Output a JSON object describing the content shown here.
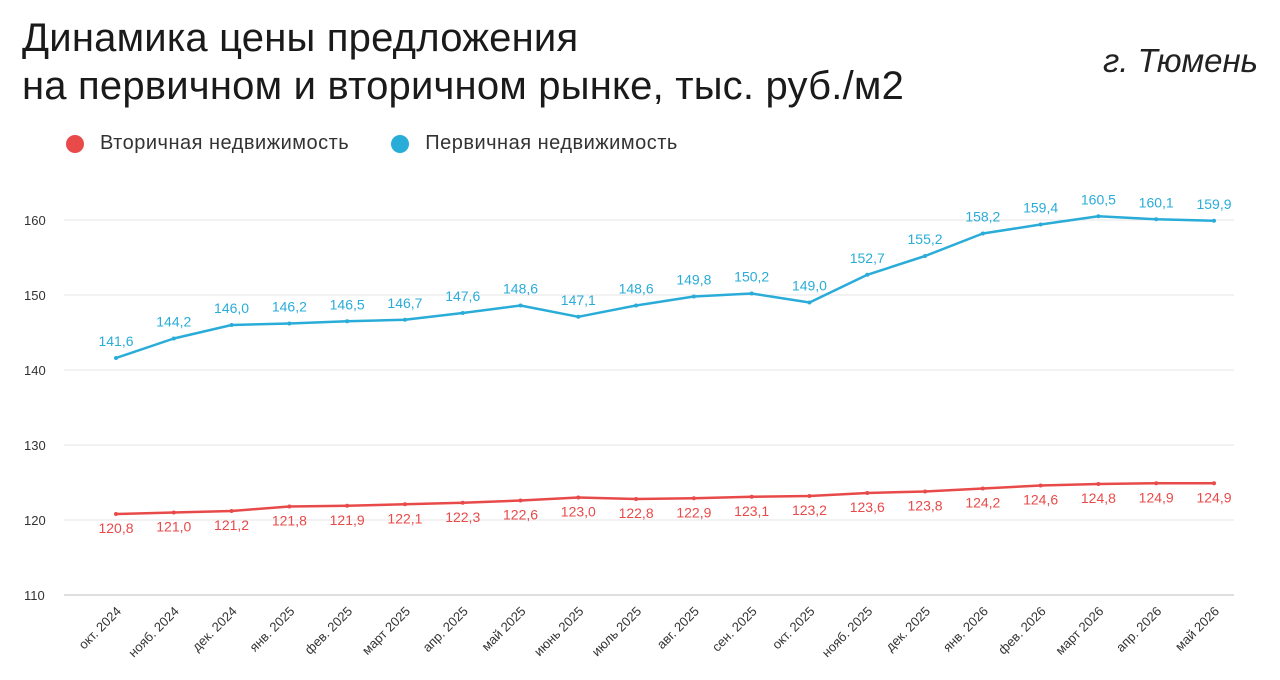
{
  "header": {
    "title_line1": "Динамика цены предложения",
    "title_line2": "на первичном и вторичном рынке, тыс. руб./м2",
    "city": "г. Тюмень"
  },
  "legend": [
    {
      "label": "Вторичная недвижимость",
      "color": "#e84a4a"
    },
    {
      "label": "Первичная недвижимость",
      "color": "#2aacd8"
    }
  ],
  "chart_data": {
    "type": "line",
    "title": "Динамика цены предложения на первичном и вторичном рынке, тыс. руб./м2",
    "categories": [
      "окт. 2024",
      "нояб. 2024",
      "дек. 2024",
      "янв. 2025",
      "фев. 2025",
      "март 2025",
      "апр. 2025",
      "май 2025",
      "июнь 2025",
      "июль 2025",
      "авг. 2025",
      "сен. 2025",
      "окт. 2025",
      "нояб. 2025",
      "дек. 2025",
      "янв. 2026",
      "фев. 2026",
      "март 2026",
      "апр. 2026",
      "май 2026"
    ],
    "series": [
      {
        "name": "Вторичная недвижимость",
        "color": "#e84a4a",
        "values": [
          120.8,
          121.0,
          121.2,
          121.8,
          121.9,
          122.1,
          122.3,
          122.6,
          123.0,
          122.8,
          122.9,
          123.1,
          123.2,
          123.6,
          123.8,
          124.2,
          124.6,
          124.8,
          124.9,
          124.9
        ],
        "labels": [
          "120,8",
          "121,0",
          "121,2",
          "121,8",
          "121,9",
          "122,1",
          "122,3",
          "122,6",
          "123,0",
          "122,8",
          "122,9",
          "123,1",
          "123,2",
          "123,6",
          "123,8",
          "124,2",
          "124,6",
          "124,8",
          "124,9",
          "124,9"
        ]
      },
      {
        "name": "Первичная недвижимость",
        "color": "#2aacd8",
        "values": [
          141.6,
          144.2,
          146.0,
          146.2,
          146.5,
          146.7,
          147.6,
          148.6,
          147.1,
          148.6,
          149.8,
          150.2,
          149.0,
          152.7,
          155.2,
          158.2,
          159.4,
          160.5,
          160.1,
          159.9
        ],
        "labels": [
          "141,6",
          "144,2",
          "146,0",
          "146,2",
          "146,5",
          "146,7",
          "147,6",
          "148,6",
          "147,1",
          "148,6",
          "149,8",
          "150,2",
          "149,0",
          "152,7",
          "155,2",
          "158,2",
          "159,4",
          "160,5",
          "160,1",
          "159,9"
        ]
      }
    ],
    "yticks": [
      110,
      120,
      130,
      140,
      150,
      160
    ],
    "ylim": [
      110,
      163
    ],
    "grid": true,
    "legend_position": "top-left"
  }
}
